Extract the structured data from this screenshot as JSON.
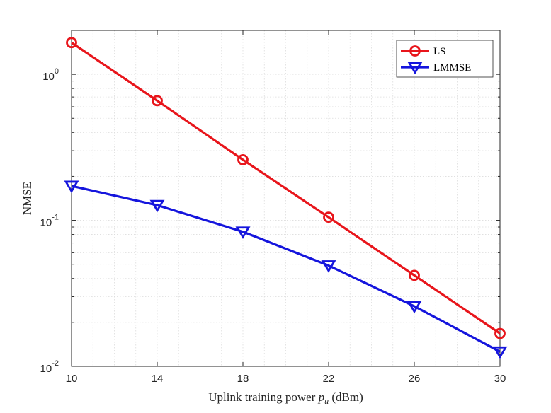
{
  "chart_data": {
    "type": "line",
    "title": "",
    "xlabel_prefix": "Uplink training power ",
    "xlabel_var": "p",
    "xlabel_sub": "u",
    "xlabel_suffix": " (dBm)",
    "ylabel": "NMSE",
    "x": [
      10,
      14,
      18,
      22,
      26,
      30
    ],
    "xlim": [
      10,
      30
    ],
    "ylim": [
      0.01,
      2
    ],
    "yscale": "log",
    "x_ticks": [
      "10",
      "14",
      "18",
      "22",
      "26",
      "30"
    ],
    "y_ticks": [
      {
        "value": 1,
        "mantissa": "10",
        "exp": "0"
      },
      {
        "value": 0.1,
        "mantissa": "10",
        "exp": "-1"
      },
      {
        "value": 0.01,
        "mantissa": "10",
        "exp": "-2"
      }
    ],
    "grid": true,
    "legend_position": "top-right",
    "series": [
      {
        "name": "LS",
        "color": "#e8151b",
        "marker": "circle",
        "values": [
          1.65,
          0.66,
          0.26,
          0.105,
          0.042,
          0.0168
        ]
      },
      {
        "name": "LMMSE",
        "color": "#1515dd",
        "marker": "triangle-down",
        "values": [
          0.172,
          0.127,
          0.0835,
          0.049,
          0.0258,
          0.0126
        ]
      }
    ]
  }
}
